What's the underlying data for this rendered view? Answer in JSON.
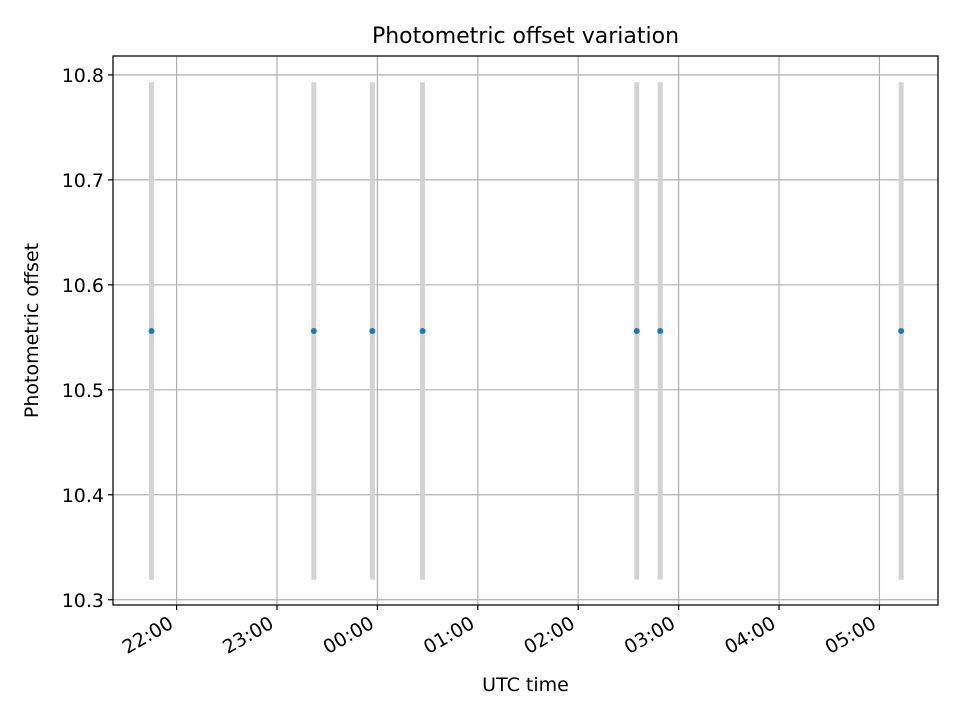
{
  "chart_data": {
    "type": "scatter",
    "title": "Photometric offset variation",
    "xlabel": "UTC time",
    "ylabel": "Photometric offset",
    "x_axis_type": "time",
    "xlim": [
      "21:22",
      "05:35"
    ],
    "ylim": [
      10.295,
      10.818
    ],
    "x_ticks": [
      "22:00",
      "23:00",
      "00:00",
      "01:00",
      "02:00",
      "03:00",
      "04:00",
      "05:00"
    ],
    "y_ticks": [
      10.3,
      10.4,
      10.5,
      10.6,
      10.7,
      10.8
    ],
    "y_tick_labels": [
      "10.3",
      "10.4",
      "10.5",
      "10.6",
      "10.7",
      "10.8"
    ],
    "grid": true,
    "x_tick_rotation": 30,
    "series": [
      {
        "x": [
          "21:45",
          "23:22",
          "23:57",
          "00:27",
          "02:35",
          "02:49",
          "05:13"
        ],
        "y": [
          10.556,
          10.556,
          10.556,
          10.556,
          10.556,
          10.556,
          10.556
        ],
        "error": [
          0.237,
          0.237,
          0.237,
          0.237,
          0.237,
          0.237,
          0.237
        ],
        "marker_color": "#1f77b4",
        "errorbar_color": "#d3d3d3"
      }
    ],
    "colors": {
      "grid": "#b0b0b0",
      "axes": "#000000"
    }
  }
}
